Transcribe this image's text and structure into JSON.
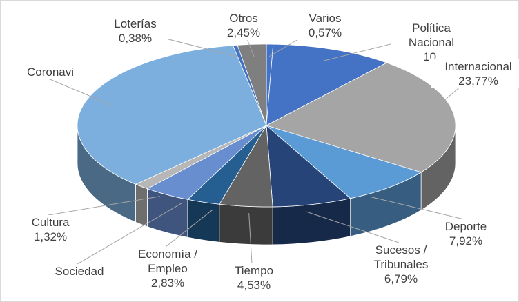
{
  "chart_data": {
    "type": "pie3d",
    "categories": [
      "Varios",
      "Política Nacional",
      "Internacional",
      "Deporte",
      "Sucesos / Tribunales",
      "Tiempo",
      "Economía / Empleo",
      "Sociedad",
      "Cultura",
      "Coronavi",
      "Loterías",
      "Otros"
    ],
    "values": [
      0.57,
      10.4,
      23.77,
      7.92,
      6.79,
      4.53,
      2.83,
      4.0,
      1.32,
      35.0,
      0.38,
      2.45
    ],
    "value_labels": [
      "0,57%",
      "10,",
      "23,77%",
      "7,92%",
      "6,79%",
      "4,53%",
      "2,83%",
      null,
      "1,32%",
      null,
      "0,38%",
      "2,45%"
    ],
    "colors": [
      "#4472c4",
      "#4472c4",
      "#a5a5a5",
      "#5b9bd5",
      "#264478",
      "#636363",
      "#255e91",
      "#698ed0",
      "#b7b7b7",
      "#7cafdd",
      "#4472c4",
      "#7f7f7f"
    ]
  }
}
